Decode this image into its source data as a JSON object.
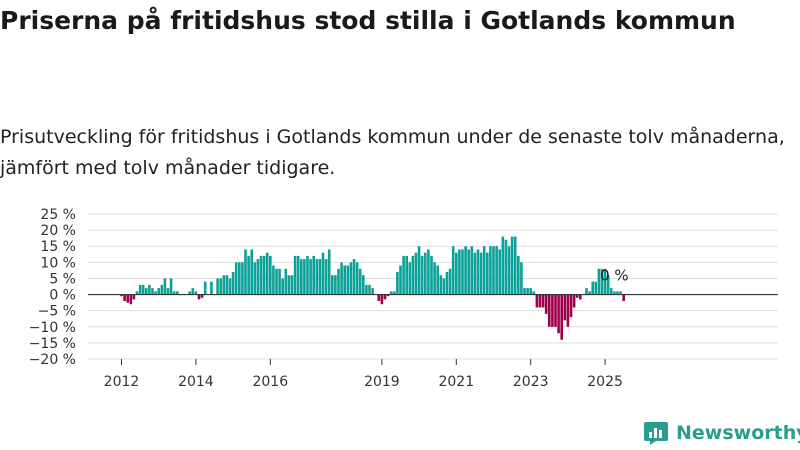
{
  "title": "Priserna på fritidshus stod stilla i Gotlands kommun",
  "subtitle": "Prisutveckling för fritidshus i Gotlands kommun under de senaste tolv månaderna, jämfört med tolv månader tidigare.",
  "brand": {
    "name": "Newsworthy"
  },
  "colors": {
    "positive": "#0aa196",
    "negative": "#a0004b",
    "grid": "#dddddd",
    "zero": "#333333"
  },
  "chart_data": {
    "type": "bar",
    "title": "Priserna på fritidshus stod stilla i Gotlands kommun",
    "ylabel": "",
    "xlabel": "",
    "ylim": [
      -20,
      25
    ],
    "yticks": [
      "25 %",
      "20 %",
      "15 %",
      "10 %",
      "5 %",
      "0 %",
      "−5 %",
      "−10 %",
      "−15 %",
      "−20 %"
    ],
    "ytick_values": [
      25,
      20,
      15,
      10,
      5,
      0,
      -5,
      -10,
      -15,
      -20
    ],
    "xticks": [
      "2012",
      "2014",
      "2016",
      "2019",
      "2021",
      "2023",
      "2025"
    ],
    "xtick_months": [
      "2012-01",
      "2014-01",
      "2016-01",
      "2019-01",
      "2021-01",
      "2023-01",
      "2025-01"
    ],
    "start_month": "2011-03",
    "values": [
      0,
      0,
      0,
      0,
      0,
      0,
      0,
      0,
      0,
      0,
      -0.5,
      -2,
      -2.5,
      -3,
      -1.5,
      1,
      3,
      3,
      2,
      3,
      2,
      1,
      2,
      3,
      5,
      2,
      5,
      1,
      1,
      0,
      0,
      0,
      1,
      2,
      1,
      -1.5,
      -1,
      4,
      0,
      4,
      0,
      5,
      5,
      6,
      6,
      5,
      7,
      10,
      10,
      10,
      14,
      12,
      14,
      10,
      11,
      12,
      12,
      13,
      12,
      9,
      8,
      8,
      5,
      8,
      6,
      6,
      12,
      12,
      11,
      11,
      12,
      11,
      12,
      11,
      11,
      13,
      11,
      14,
      6,
      6,
      8,
      10,
      9,
      9,
      10,
      11,
      10,
      8,
      6,
      3,
      3,
      2,
      0,
      -2,
      -3,
      -1.5,
      -0.5,
      1,
      1,
      7,
      9,
      12,
      12,
      10,
      12,
      13,
      15,
      12,
      13,
      14,
      12,
      10,
      9,
      6,
      5,
      7,
      8,
      15,
      13,
      14,
      14,
      15,
      14,
      15,
      13,
      14,
      13,
      15,
      13,
      15,
      15,
      15,
      14,
      18,
      17,
      15,
      18,
      18,
      12,
      10,
      2,
      2,
      2,
      1,
      -4,
      -4,
      -4,
      -6,
      -10,
      -10,
      -10,
      -12,
      -14,
      -8,
      -10,
      -7,
      -4,
      -1,
      -1.5,
      0,
      2,
      1,
      4,
      4,
      8,
      8,
      8,
      6,
      2,
      1,
      1,
      1,
      -2,
      0,
      0,
      0,
      0
    ],
    "annotations": [
      {
        "month": "2025-04",
        "text": "0 %"
      }
    ],
    "grid": true,
    "legend": "none"
  }
}
